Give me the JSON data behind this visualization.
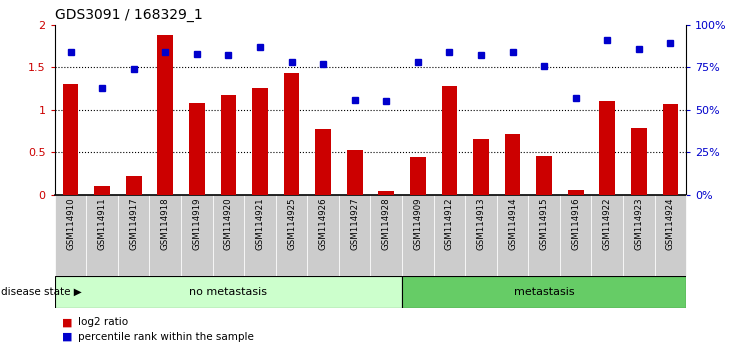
{
  "title": "GDS3091 / 168329_1",
  "samples": [
    "GSM114910",
    "GSM114911",
    "GSM114917",
    "GSM114918",
    "GSM114919",
    "GSM114920",
    "GSM114921",
    "GSM114925",
    "GSM114926",
    "GSM114927",
    "GSM114928",
    "GSM114909",
    "GSM114912",
    "GSM114913",
    "GSM114914",
    "GSM114915",
    "GSM114916",
    "GSM114922",
    "GSM114923",
    "GSM114924"
  ],
  "log2_ratio": [
    1.3,
    0.1,
    0.22,
    1.88,
    1.08,
    1.17,
    1.25,
    1.43,
    0.77,
    0.53,
    0.04,
    0.44,
    1.28,
    0.66,
    0.72,
    0.45,
    0.05,
    1.1,
    0.79,
    1.07
  ],
  "percentile": [
    84,
    63,
    74,
    84,
    83,
    82,
    87,
    78,
    77,
    56,
    55,
    78,
    84,
    82,
    84,
    76,
    57,
    91,
    86,
    89
  ],
  "no_metastasis_count": 11,
  "metastasis_count": 9,
  "bar_color": "#cc0000",
  "dot_color": "#0000cc",
  "no_met_bg": "#ccffcc",
  "met_bg": "#66cc66",
  "tick_bg": "#cccccc",
  "ylim_left": [
    0,
    2
  ],
  "ylim_right": [
    0,
    100
  ],
  "yticks_left": [
    0,
    0.5,
    1.0,
    1.5,
    2.0
  ],
  "yticks_right": [
    0,
    25,
    50,
    75,
    100
  ],
  "ytick_labels_left": [
    "0",
    "0.5",
    "1",
    "1.5",
    "2"
  ],
  "ytick_labels_right": [
    "0%",
    "25%",
    "50%",
    "75%",
    "100%"
  ]
}
